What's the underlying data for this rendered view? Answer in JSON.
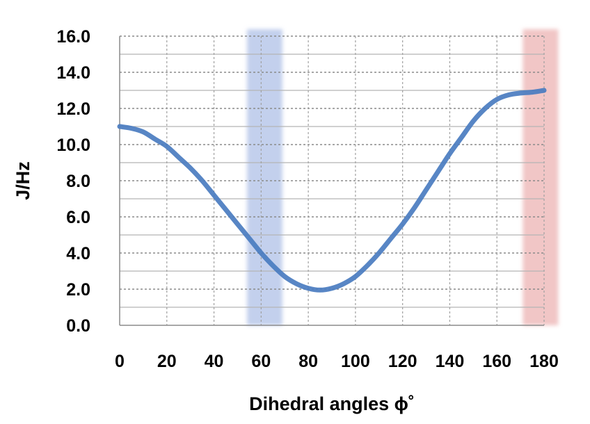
{
  "chart_data": {
    "type": "line",
    "title": "",
    "xlabel": "Dihedral angles ϕ˚",
    "ylabel": "J/Hz",
    "xlim": [
      0,
      180
    ],
    "ylim": [
      0,
      16
    ],
    "x_ticks": [
      0,
      20,
      40,
      60,
      80,
      100,
      120,
      140,
      160,
      180
    ],
    "y_ticks": [
      "0.0",
      "2.0",
      "4.0",
      "6.0",
      "8.0",
      "10.0",
      "12.0",
      "14.0",
      "16.0"
    ],
    "grid": true,
    "series": [
      {
        "name": "",
        "color": "#4a7cc0",
        "x": [
          0,
          5,
          10,
          15,
          20,
          25,
          30,
          35,
          40,
          45,
          50,
          55,
          60,
          65,
          70,
          75,
          80,
          85,
          90,
          95,
          100,
          105,
          110,
          115,
          120,
          125,
          130,
          135,
          140,
          145,
          150,
          155,
          160,
          165,
          170,
          175,
          180
        ],
        "y": [
          11.0,
          10.9,
          10.7,
          10.3,
          9.9,
          9.3,
          8.7,
          8.0,
          7.2,
          6.4,
          5.6,
          4.8,
          4.0,
          3.3,
          2.7,
          2.3,
          2.05,
          1.95,
          2.05,
          2.3,
          2.7,
          3.3,
          4.0,
          4.8,
          5.6,
          6.5,
          7.5,
          8.5,
          9.5,
          10.4,
          11.3,
          12.0,
          12.5,
          12.75,
          12.85,
          12.9,
          13.0
        ]
      }
    ],
    "highlight_bands": [
      {
        "x_range": [
          54,
          69
        ],
        "color": "#b8c8ea"
      },
      {
        "x_range": [
          171,
          186
        ],
        "color": "#efbcbc"
      }
    ]
  }
}
